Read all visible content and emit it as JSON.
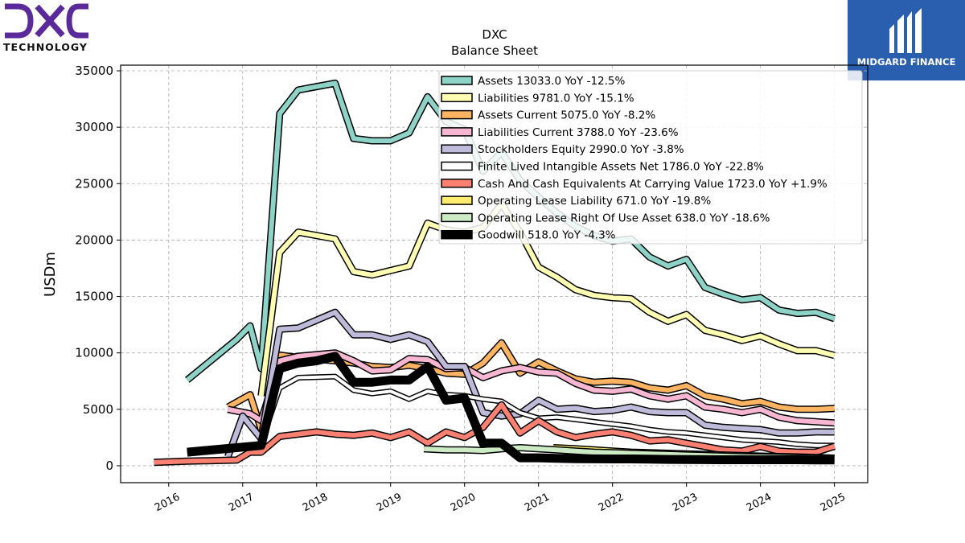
{
  "logos": {
    "left_wordmark": "DXC",
    "left_subtitle": "TECHNOLOGY",
    "right_text": "MIDGARD FINANCE",
    "left_color": "#5b2a9a",
    "right_bg": "#2a5fb0"
  },
  "chart_data": {
    "type": "line",
    "title": "DXC",
    "subtitle": "Balance  Sheet",
    "ylabel": "USDm",
    "xlabel": "",
    "ylim": [
      -1500,
      35500
    ],
    "xlim": [
      2015.35,
      2025.45
    ],
    "yticks": [
      0,
      5000,
      10000,
      15000,
      20000,
      25000,
      30000,
      35000
    ],
    "xticks": [
      "2016",
      "2017",
      "2018",
      "2019",
      "2020",
      "2021",
      "2022",
      "2023",
      "2024",
      "2025"
    ],
    "grid": true,
    "legend_position": "top-right",
    "series": [
      {
        "name": "Assets  13033.0 YoY -12.5%",
        "color": "#8dd3c7",
        "width": 6,
        "x": [
          2016.25,
          2016.92,
          2017.1,
          2017.25,
          2017.5,
          2017.75,
          2018.25,
          2018.5,
          2018.75,
          2019.0,
          2019.25,
          2019.5,
          2019.75,
          2020.0,
          2020.25,
          2020.5,
          2020.75,
          2021.0,
          2021.25,
          2021.5,
          2021.75,
          2022.0,
          2022.25,
          2022.5,
          2022.75,
          2023.0,
          2023.25,
          2023.5,
          2023.75,
          2024.0,
          2024.25,
          2024.5,
          2024.75,
          2025.0
        ],
        "y": [
          7600,
          11200,
          12400,
          8600,
          31200,
          33300,
          33900,
          29000,
          28800,
          28800,
          29500,
          32700,
          30500,
          29800,
          26100,
          27800,
          25300,
          23800,
          22400,
          21200,
          20400,
          19900,
          20100,
          18500,
          17700,
          18300,
          15800,
          15200,
          14700,
          14900,
          13800,
          13500,
          13600,
          13033
        ]
      },
      {
        "name": "Liabilities  9781.0 YoY -15.1%",
        "color": "#ffffb3",
        "width": 6,
        "x": [
          2017.25,
          2017.5,
          2017.75,
          2018.25,
          2018.5,
          2018.75,
          2019.0,
          2019.25,
          2019.5,
          2019.75,
          2020.0,
          2020.25,
          2020.5,
          2020.75,
          2021.0,
          2021.25,
          2021.5,
          2021.75,
          2022.0,
          2022.25,
          2022.5,
          2022.75,
          2023.0,
          2023.25,
          2023.5,
          2023.75,
          2024.0,
          2024.25,
          2024.5,
          2024.75,
          2025.0
        ],
        "y": [
          6200,
          18900,
          20700,
          20100,
          17200,
          16900,
          17300,
          17700,
          21500,
          20900,
          20700,
          21100,
          23200,
          20700,
          17600,
          16700,
          15600,
          15100,
          14900,
          14800,
          13600,
          12800,
          13400,
          12000,
          11600,
          11100,
          11500,
          10800,
          10200,
          10200,
          9781
        ]
      },
      {
        "name": "Assets Current  5075.0 YoY -8.2%",
        "color": "#fdb462",
        "width": 6,
        "x": [
          2016.8,
          2017.1,
          2017.25,
          2017.5,
          2017.75,
          2018.25,
          2018.5,
          2018.75,
          2019.0,
          2019.25,
          2019.5,
          2019.75,
          2020.0,
          2020.25,
          2020.5,
          2020.75,
          2021.0,
          2021.25,
          2021.5,
          2021.75,
          2022.0,
          2022.25,
          2022.5,
          2022.75,
          2023.0,
          2023.25,
          2023.5,
          2023.75,
          2024.0,
          2024.25,
          2024.5,
          2024.75,
          2025.0
        ],
        "y": [
          5200,
          6300,
          3200,
          9800,
          9600,
          9300,
          9100,
          8800,
          8700,
          8900,
          8600,
          8200,
          8100,
          9100,
          10900,
          8200,
          9200,
          8400,
          7700,
          7400,
          7500,
          7400,
          6900,
          6700,
          7100,
          6200,
          5900,
          5500,
          5700,
          5200,
          5000,
          5000,
          5075
        ]
      },
      {
        "name": "Liabilities Current  3788.0 YoY -23.6%",
        "color": "#f7b6d2",
        "width": 6,
        "x": [
          2016.8,
          2017.1,
          2017.25,
          2017.5,
          2017.75,
          2018.25,
          2018.5,
          2018.75,
          2019.0,
          2019.25,
          2019.5,
          2019.75,
          2020.0,
          2020.25,
          2020.5,
          2020.75,
          2021.0,
          2021.25,
          2021.5,
          2021.75,
          2022.0,
          2022.25,
          2022.5,
          2022.75,
          2023.0,
          2023.25,
          2023.5,
          2023.75,
          2024.0,
          2024.25,
          2024.5,
          2024.75,
          2025.0
        ],
        "y": [
          5000,
          4600,
          4000,
          9300,
          9700,
          10000,
          9300,
          8400,
          8500,
          9500,
          9400,
          8600,
          8700,
          7800,
          8400,
          8700,
          8300,
          8200,
          7300,
          6700,
          6600,
          6800,
          6200,
          5900,
          6200,
          5200,
          5000,
          4700,
          5000,
          4300,
          4000,
          3900,
          3788
        ]
      },
      {
        "name": "Stockholders Equity  2990.0 YoY -3.8%",
        "color": "#bebada",
        "width": 6,
        "x": [
          2016.8,
          2017.0,
          2017.25,
          2017.5,
          2017.75,
          2018.25,
          2018.5,
          2018.75,
          2019.0,
          2019.25,
          2019.5,
          2019.75,
          2020.0,
          2020.25,
          2020.5,
          2020.75,
          2021.0,
          2021.25,
          2021.5,
          2021.75,
          2022.0,
          2022.25,
          2022.5,
          2022.75,
          2023.0,
          2023.25,
          2023.5,
          2023.75,
          2024.0,
          2024.25,
          2024.5,
          2024.75,
          2025.0
        ],
        "y": [
          800,
          4400,
          2400,
          12100,
          12200,
          13600,
          11600,
          11600,
          11200,
          11600,
          11000,
          8800,
          8800,
          4700,
          4400,
          4600,
          5800,
          5000,
          5100,
          4800,
          4900,
          5200,
          4800,
          4700,
          4700,
          3600,
          3400,
          3300,
          3200,
          2900,
          2900,
          3000,
          2990
        ]
      },
      {
        "name": "Finite Lived Intangible Assets Net  1786.0 YoY -22.8%",
        "color": "#ffffff",
        "width": 4,
        "x": [
          2017.25,
          2017.5,
          2017.75,
          2018.25,
          2018.5,
          2018.75,
          2019.0,
          2019.25,
          2019.5,
          2019.75,
          2020.0,
          2020.25,
          2020.5,
          2020.75,
          2021.0,
          2021.25,
          2021.5,
          2021.75,
          2022.0,
          2022.25,
          2022.5,
          2022.75,
          2023.0,
          2023.25,
          2023.5,
          2023.75,
          2024.0,
          2024.25,
          2024.5,
          2024.75,
          2025.0
        ],
        "y": [
          2000,
          6900,
          7800,
          7900,
          6700,
          6400,
          6600,
          5900,
          6600,
          6300,
          6200,
          5900,
          5700,
          4700,
          4200,
          4300,
          4100,
          3900,
          3700,
          3500,
          3200,
          3000,
          2900,
          2700,
          2500,
          2300,
          2200,
          2100,
          1900,
          1800,
          1786
        ]
      },
      {
        "name": "Cash And Cash Equivalents At Carrying Value  1723.0 YoY +1.9%",
        "color": "#fb8072",
        "width": 6,
        "x": [
          2015.8,
          2016.25,
          2016.92,
          2017.1,
          2017.25,
          2017.5,
          2017.75,
          2018.0,
          2018.25,
          2018.5,
          2018.75,
          2019.0,
          2019.25,
          2019.5,
          2019.75,
          2020.0,
          2020.25,
          2020.5,
          2020.75,
          2021.0,
          2021.25,
          2021.5,
          2021.75,
          2022.0,
          2022.25,
          2022.5,
          2022.75,
          2023.0,
          2023.25,
          2023.5,
          2023.75,
          2024.0,
          2024.25,
          2024.5,
          2024.75,
          2025.0
        ],
        "y": [
          300,
          400,
          500,
          1200,
          1200,
          2600,
          2800,
          3000,
          2800,
          2700,
          2900,
          2500,
          3000,
          2000,
          3000,
          2500,
          3400,
          5400,
          2900,
          4000,
          3000,
          2500,
          2800,
          3000,
          2700,
          2200,
          2300,
          2000,
          1700,
          1400,
          1300,
          1700,
          1300,
          1200,
          1200,
          1723
        ]
      },
      {
        "name": "Operating Lease Liability  671.0 YoY -19.8%",
        "color": "#ffed6f",
        "width": 6,
        "x": [
          2021.2,
          2021.5,
          2021.75,
          2022.0,
          2022.25,
          2022.5,
          2022.75,
          2023.0,
          2023.25,
          2023.5,
          2023.75,
          2024.0,
          2024.25,
          2024.5,
          2024.75,
          2025.0
        ],
        "y": [
          1600,
          1500,
          1400,
          1300,
          1200,
          1150,
          1100,
          1050,
          1000,
          950,
          900,
          850,
          820,
          780,
          730,
          671
        ]
      },
      {
        "name": "Operating Lease Right Of Use Asset  638.0 YoY -18.6%",
        "color": "#ccebc5",
        "width": 6,
        "x": [
          2019.45,
          2019.75,
          2020.0,
          2020.25,
          2020.5,
          2020.75,
          2021.0,
          2021.25,
          2021.5,
          2021.75,
          2022.0,
          2022.25,
          2022.5,
          2022.75,
          2023.0,
          2023.25,
          2023.5,
          2023.75,
          2024.0,
          2024.25,
          2024.5,
          2024.75,
          2025.0
        ],
        "y": [
          1500,
          1400,
          1400,
          1350,
          1500,
          1600,
          1500,
          1400,
          1300,
          1200,
          1150,
          1100,
          1050,
          1000,
          950,
          900,
          850,
          800,
          780,
          750,
          720,
          680,
          638
        ]
      },
      {
        "name": "Goodwill  518.0 YoY -4.3%",
        "color": "#000000",
        "width": 8,
        "x": [
          2016.25,
          2016.92,
          2017.25,
          2017.5,
          2017.75,
          2018.0,
          2018.25,
          2018.5,
          2018.75,
          2019.0,
          2019.25,
          2019.5,
          2019.75,
          2020.0,
          2020.25,
          2020.5,
          2020.75,
          2021.0,
          2021.25,
          2021.5,
          2021.75,
          2022.0,
          2022.25,
          2022.5,
          2022.75,
          2023.0,
          2023.25,
          2023.5,
          2023.75,
          2024.0,
          2024.25,
          2024.5,
          2024.75,
          2025.0
        ],
        "y": [
          1200,
          1600,
          1800,
          8600,
          9100,
          9300,
          9700,
          7400,
          7400,
          7600,
          7600,
          8800,
          5800,
          6000,
          2000,
          2000,
          700,
          700,
          650,
          620,
          610,
          600,
          600,
          590,
          560,
          550,
          540,
          530,
          530,
          530,
          530,
          530,
          520,
          518
        ]
      }
    ]
  }
}
